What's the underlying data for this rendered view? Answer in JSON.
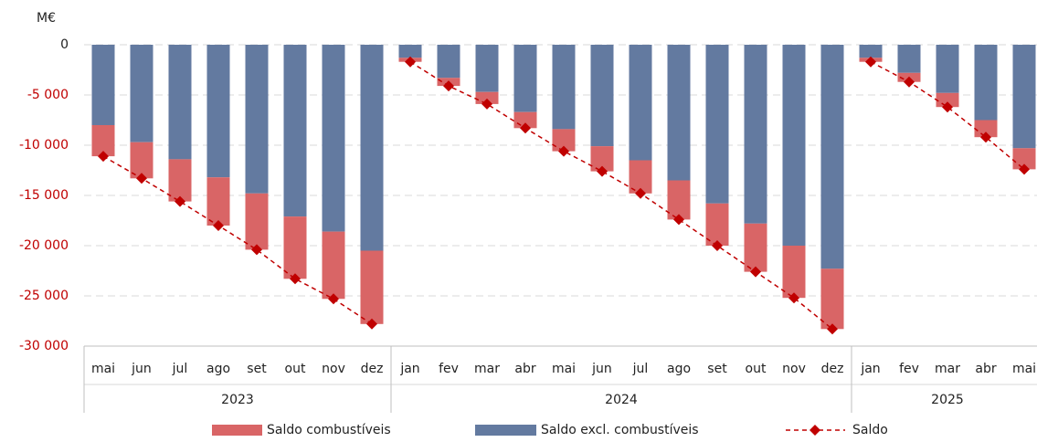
{
  "chart_data": {
    "type": "stacked-bar-line",
    "y_axis_label": "M€",
    "groups": [
      {
        "label": "2023",
        "categories": [
          "mai",
          "jun",
          "jul",
          "ago",
          "set",
          "out",
          "nov",
          "dez"
        ]
      },
      {
        "label": "2024",
        "categories": [
          "jan",
          "fev",
          "mar",
          "abr",
          "mai",
          "jun",
          "jul",
          "ago",
          "set",
          "out",
          "nov",
          "dez"
        ]
      },
      {
        "label": "2025",
        "categories": [
          "jan",
          "fev",
          "mar",
          "abr",
          "mai"
        ]
      }
    ],
    "series": [
      {
        "name": "Saldo excl. combustíveis",
        "color": "#637aa0",
        "kind": "bar",
        "values": [
          -8000,
          -9700,
          -11400,
          -13200,
          -14800,
          -17100,
          -18600,
          -20500,
          -1300,
          -3300,
          -4700,
          -6700,
          -8400,
          -10100,
          -11500,
          -13500,
          -15800,
          -17800,
          -20000,
          -22300,
          -1300,
          -2800,
          -4800,
          -7500,
          -10300
        ]
      },
      {
        "name": "Saldo combustíveis",
        "color": "#d96566",
        "kind": "bar",
        "values": [
          -3100,
          -3600,
          -4200,
          -4800,
          -5600,
          -6200,
          -6700,
          -7300,
          -400,
          -800,
          -1200,
          -1600,
          -2200,
          -2500,
          -3300,
          -3900,
          -4200,
          -4800,
          -5200,
          -6000,
          -400,
          -900,
          -1400,
          -1700,
          -2100
        ]
      },
      {
        "name": "Saldo",
        "color": "#c00000",
        "kind": "line",
        "values": [
          -11100,
          -13300,
          -15600,
          -18000,
          -20400,
          -23300,
          -25300,
          -27800,
          -1700,
          -4100,
          -5900,
          -8300,
          -10600,
          -12600,
          -14800,
          -17400,
          -20000,
          -22600,
          -25200,
          -28300,
          -1700,
          -3700,
          -6200,
          -9200,
          -12400
        ]
      }
    ],
    "ylim": [
      -30000,
      0
    ],
    "yticks": [
      0,
      {
        "value": -5000,
        "label": "-5 000"
      },
      {
        "value": -10000,
        "label": "-10 000"
      },
      {
        "value": -15000,
        "label": "-15 000"
      },
      {
        "value": -20000,
        "label": "-20 000"
      },
      {
        "value": -25000,
        "label": "-25 000"
      },
      {
        "value": -30000,
        "label": "-30 000"
      }
    ],
    "negative_tick_color": "#c00000",
    "grid": true,
    "legend_position": "bottom"
  }
}
